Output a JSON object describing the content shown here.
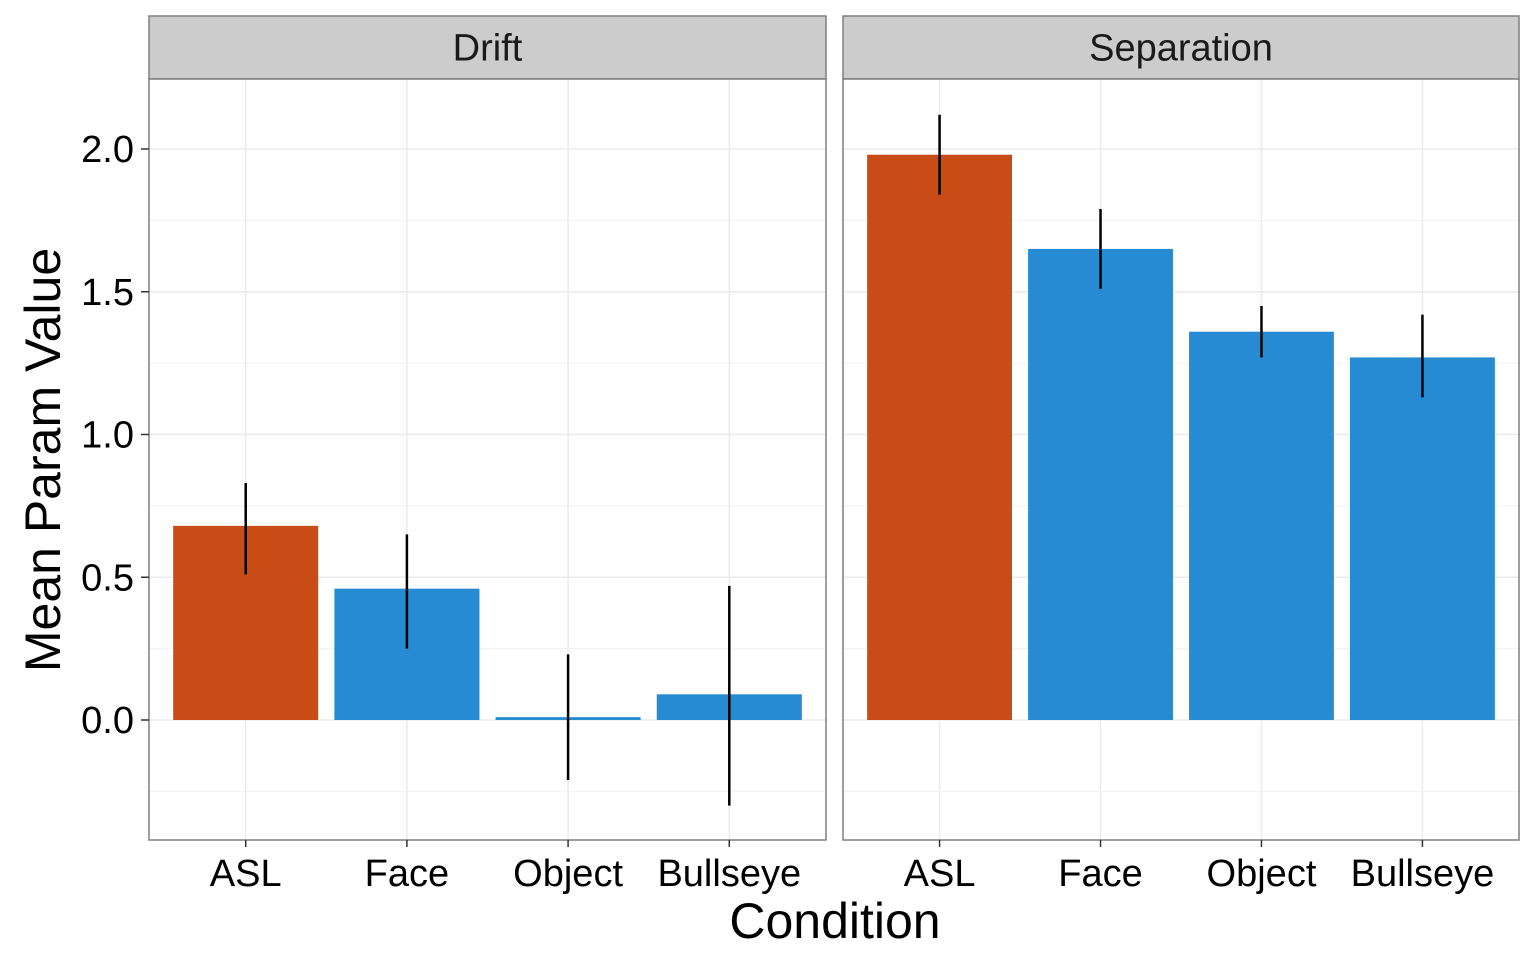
{
  "chart_data": {
    "type": "bar",
    "xlabel": "Condition",
    "ylabel": "Mean Param Value",
    "ylim": [
      -0.42,
      2.24
    ],
    "yticks": [
      "0.0",
      "0.5",
      "1.0",
      "1.5",
      "2.0"
    ],
    "ytick_values": [
      0,
      0.5,
      1.0,
      1.5,
      2.0
    ],
    "categories": [
      "ASL",
      "Face",
      "Object",
      "Bullseye"
    ],
    "grid": true,
    "colors": {
      "ASL": "#c94c17",
      "other": "#268bd2",
      "strip_background": "#cccccc",
      "panel_border": "#7f7f7f",
      "grid": "#ebebeb"
    },
    "panels": [
      {
        "name": "Drift",
        "values": [
          0.68,
          0.46,
          0.01,
          0.09
        ],
        "error_low": [
          0.51,
          0.25,
          -0.21,
          -0.3
        ],
        "error_high": [
          0.83,
          0.65,
          0.23,
          0.47
        ]
      },
      {
        "name": "Separation",
        "values": [
          1.98,
          1.65,
          1.36,
          1.27
        ],
        "error_low": [
          1.84,
          1.51,
          1.27,
          1.13
        ],
        "error_high": [
          2.12,
          1.79,
          1.45,
          1.42
        ]
      }
    ]
  }
}
